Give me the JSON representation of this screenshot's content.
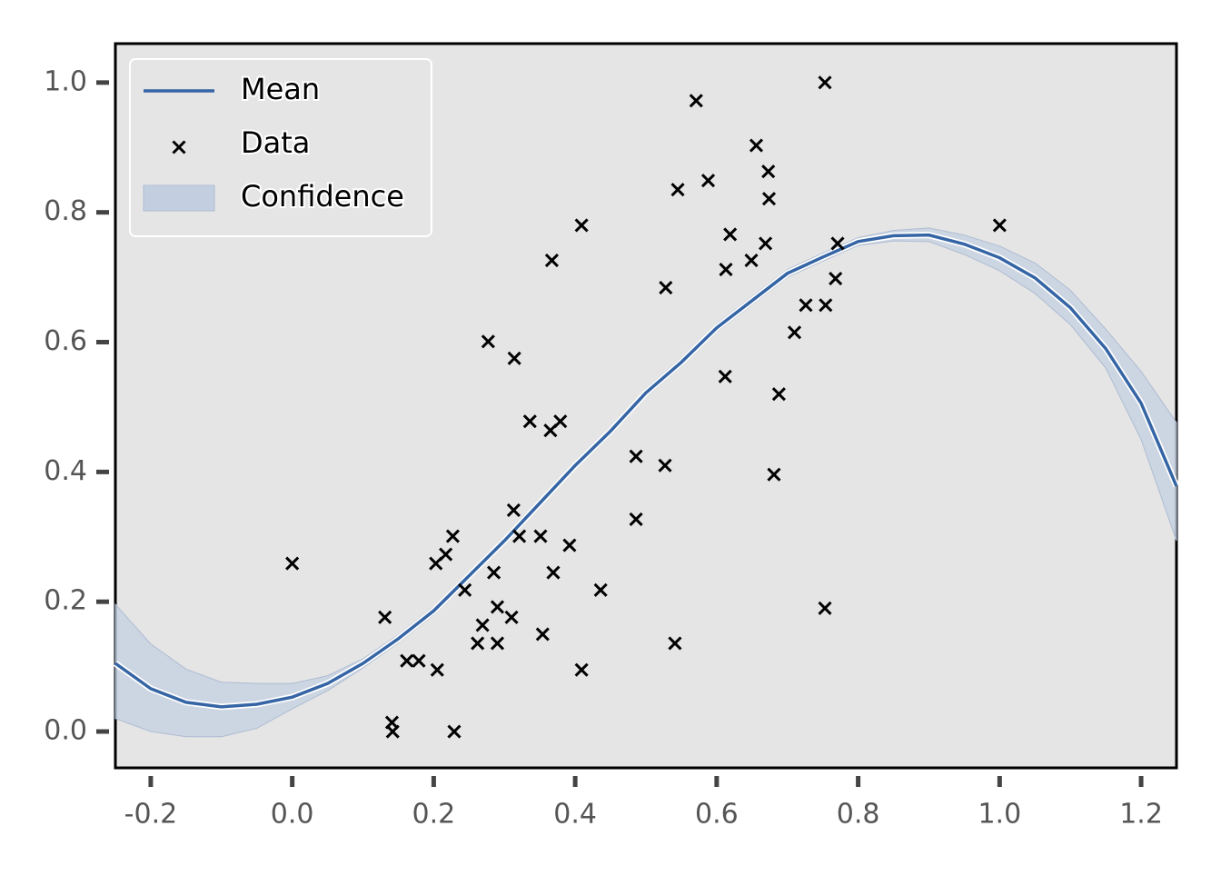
{
  "chart_data": {
    "type": "line",
    "xlim": [
      -0.25,
      1.25
    ],
    "ylim": [
      -0.056,
      1.06
    ],
    "xticks": [
      -0.2,
      {
        "value": 0,
        "label": "0.0"
      },
      0.2,
      0.4,
      0.6,
      0.8,
      {
        "value": 1,
        "label": "1.0"
      },
      1.2
    ],
    "yticks": [
      {
        "value": 0,
        "label": "0.0"
      },
      0.2,
      0.4,
      0.6,
      0.8,
      {
        "value": 1,
        "label": "1.0"
      }
    ],
    "legend": "upper left",
    "series": [
      {
        "name": "Mean",
        "type": "line",
        "color": "#3565a5",
        "x": [
          -0.25,
          -0.2,
          -0.15,
          -0.1,
          -0.05,
          0,
          0.05,
          0.1,
          0.15,
          0.2,
          0.25,
          0.3,
          0.35,
          0.4,
          0.45,
          0.5,
          0.55,
          0.6,
          0.65,
          0.7,
          0.75,
          0.8,
          0.85,
          0.9,
          0.95,
          1.0,
          1.05,
          1.1,
          1.15,
          1.2,
          1.25
        ],
        "values": [
          0.105,
          0.066,
          0.045,
          0.038,
          0.042,
          0.053,
          0.074,
          0.105,
          0.143,
          0.186,
          0.24,
          0.294,
          0.352,
          0.41,
          0.463,
          0.522,
          0.569,
          0.622,
          0.664,
          0.706,
          0.731,
          0.755,
          0.764,
          0.765,
          0.751,
          0.73,
          0.699,
          0.653,
          0.59,
          0.506,
          0.378
        ]
      },
      {
        "name": "Data",
        "type": "scatter",
        "color": "#000000",
        "x": [
          0.0,
          0.131,
          0.141,
          0.142,
          0.162,
          0.179,
          0.203,
          0.205,
          0.217,
          0.227,
          0.229,
          0.244,
          0.262,
          0.269,
          0.277,
          0.285,
          0.29,
          0.29,
          0.31,
          0.313,
          0.314,
          0.321,
          0.336,
          0.351,
          0.354,
          0.365,
          0.367,
          0.369,
          0.379,
          0.392,
          0.409,
          0.409,
          0.436,
          0.486,
          0.486,
          0.527,
          0.528,
          0.541,
          0.545,
          0.571,
          0.588,
          0.612,
          0.613,
          0.619,
          0.649,
          0.656,
          0.669,
          0.673,
          0.674,
          0.681,
          0.688,
          0.71,
          0.726,
          0.753,
          0.754,
          0.753,
          0.768,
          0.771,
          1.0
        ],
        "values": [
          0.259,
          0.176,
          0.014,
          0.0,
          0.109,
          0.109,
          0.259,
          0.095,
          0.273,
          0.301,
          0.0,
          0.218,
          0.136,
          0.164,
          0.601,
          0.245,
          0.192,
          0.136,
          0.176,
          0.341,
          0.575,
          0.301,
          0.478,
          0.301,
          0.15,
          0.464,
          0.726,
          0.245,
          0.478,
          0.287,
          0.095,
          0.78,
          0.218,
          0.424,
          0.327,
          0.41,
          0.684,
          0.136,
          0.835,
          0.972,
          0.849,
          0.547,
          0.712,
          0.766,
          0.726,
          0.903,
          0.752,
          0.863,
          0.821,
          0.396,
          0.52,
          0.615,
          0.657,
          1.0,
          0.657,
          0.19,
          0.698,
          0.752,
          0.78
        ]
      },
      {
        "name": "Confidence",
        "type": "band",
        "color": "#c3cfe0",
        "x": [
          -0.25,
          -0.2,
          -0.15,
          -0.1,
          -0.05,
          0,
          0.05,
          0.1,
          0.15,
          0.2,
          0.25,
          0.3,
          0.35,
          0.4,
          0.45,
          0.5,
          0.55,
          0.6,
          0.65,
          0.7,
          0.75,
          0.8,
          0.85,
          0.9,
          0.95,
          1.0,
          1.05,
          1.1,
          1.15,
          1.2,
          1.25
        ],
        "lower": [
          0.02,
          0.0,
          -0.008,
          -0.008,
          0.005,
          0.035,
          0.063,
          0.098,
          0.137,
          0.18,
          0.234,
          0.288,
          0.346,
          0.404,
          0.457,
          0.516,
          0.563,
          0.616,
          0.658,
          0.7,
          0.725,
          0.749,
          0.756,
          0.755,
          0.735,
          0.71,
          0.675,
          0.627,
          0.56,
          0.45,
          0.294
        ],
        "upper": [
          0.196,
          0.135,
          0.096,
          0.076,
          0.074,
          0.074,
          0.086,
          0.112,
          0.149,
          0.192,
          0.246,
          0.3,
          0.358,
          0.416,
          0.469,
          0.528,
          0.575,
          0.628,
          0.67,
          0.712,
          0.737,
          0.761,
          0.772,
          0.776,
          0.765,
          0.748,
          0.722,
          0.68,
          0.62,
          0.555,
          0.476
        ]
      }
    ]
  }
}
